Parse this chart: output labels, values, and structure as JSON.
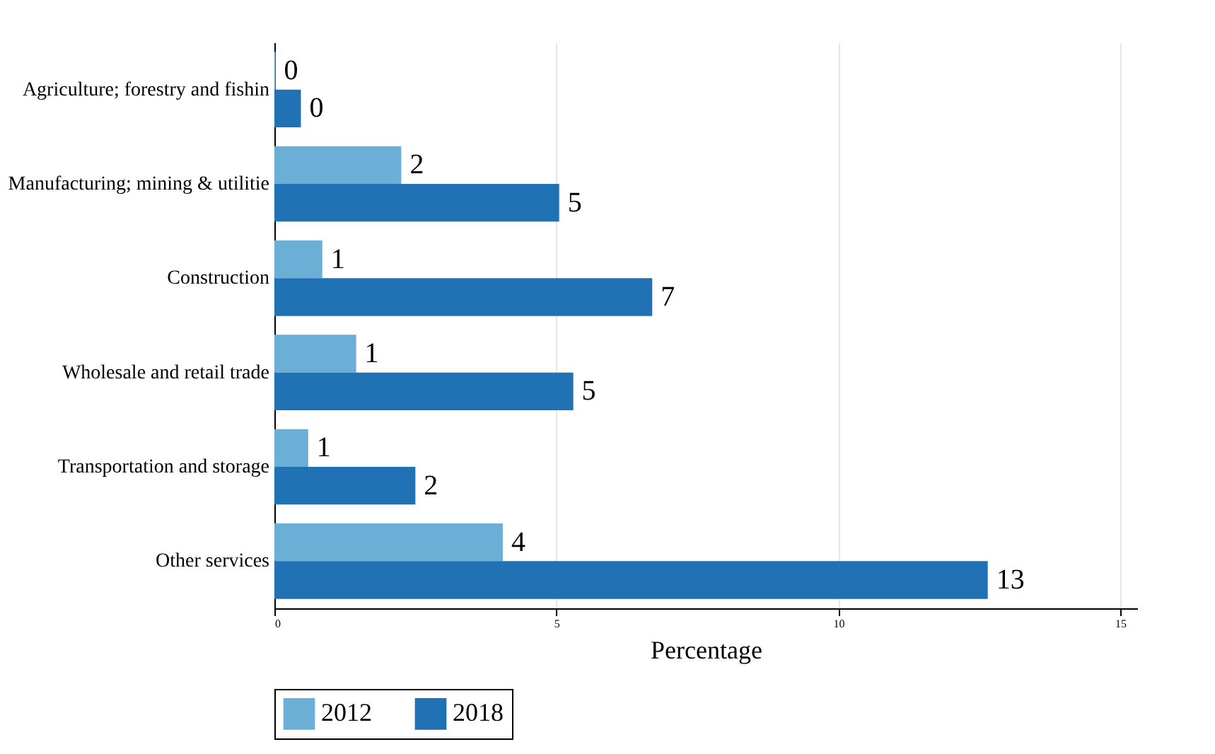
{
  "chart_data": {
    "type": "bar",
    "orientation": "horizontal",
    "xlabel": "Percentage",
    "categories": [
      "Agriculture; forestry and fishin",
      "Manufacturing; mining & utilitie",
      "Construction",
      "Wholesale and retail trade",
      "Transportation and storage",
      "Other services"
    ],
    "series": [
      {
        "name": "2012",
        "color": "#6baed6",
        "values": [
          0.02,
          2.25,
          0.85,
          1.45,
          0.6,
          4.05
        ],
        "value_labels": [
          "0",
          "2",
          "1",
          "1",
          "1",
          "4"
        ]
      },
      {
        "name": "2018",
        "color": "#2171b5",
        "values": [
          0.47,
          5.05,
          6.7,
          5.3,
          2.5,
          12.65
        ],
        "value_labels": [
          "0",
          "5",
          "7",
          "5",
          "2",
          "13"
        ]
      }
    ],
    "xlim": [
      0,
      15.3
    ],
    "xticks": [
      0,
      5,
      10,
      15
    ],
    "grid": "x",
    "legend": "bottom"
  }
}
